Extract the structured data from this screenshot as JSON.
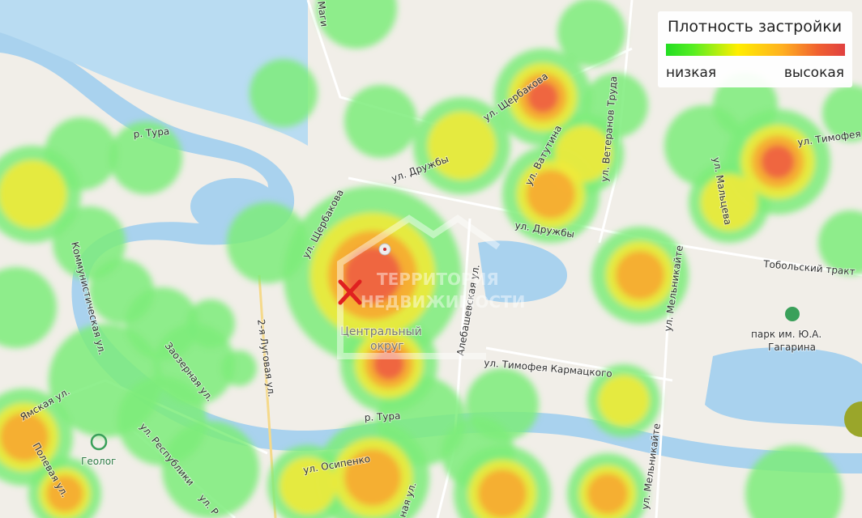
{
  "legend": {
    "title": "Плотность застройки",
    "low": "низкая",
    "high": "высокая",
    "colors": [
      "#22dd22",
      "#ffee00",
      "#ffb020",
      "#e04040"
    ]
  },
  "watermark": {
    "line1": "ТЕРРИТОРИЯ",
    "line2": "НЕДВИЖИМОСТИ"
  },
  "labels": {
    "river1": "р. Тура",
    "river2": "р. Тура",
    "shcherbakova1": "ул. Щербакова",
    "shcherbakova2": "ул. Щербакова",
    "druzhby1": "ул. Дружбы",
    "druzhby2": "ул. Дружбы",
    "vatutina": "ул. Ватутина",
    "veteranov": "ул. Ветеранов Труда",
    "timofeya_ch": "ул. Тимофея Ч",
    "maltseva": "ул. Мальцева",
    "tobolsky": "Тобольский тракт",
    "park1": "парк им. Ю.А.",
    "park2": "Гагарина",
    "melnikaite1": "ул. Мельникайте",
    "melnikaite2": "ул. Мельникайте",
    "karmatskogo": "ул. Тимофея Кармацкого",
    "alebashevskaya": "Алебашевская ул.",
    "district1": "Центральный",
    "district2": "округ",
    "lugovaya": "2-я Луговая ул.",
    "zaozernaya": "Заозерная ул.",
    "kommunisticheskaya": "Коммунистическая ул.",
    "yamskaya": "Ямская ул.",
    "polevaya": "Полевая ул.",
    "geolog": "Геолог",
    "respubliki1": "ул. Республики",
    "respubliki2": "ул. Р",
    "osipenko": "ул. Осипенко",
    "naya": "ная ул.",
    "magi": "Маги"
  },
  "marker": {
    "type": "cross-icon",
    "color": "#e02020"
  }
}
